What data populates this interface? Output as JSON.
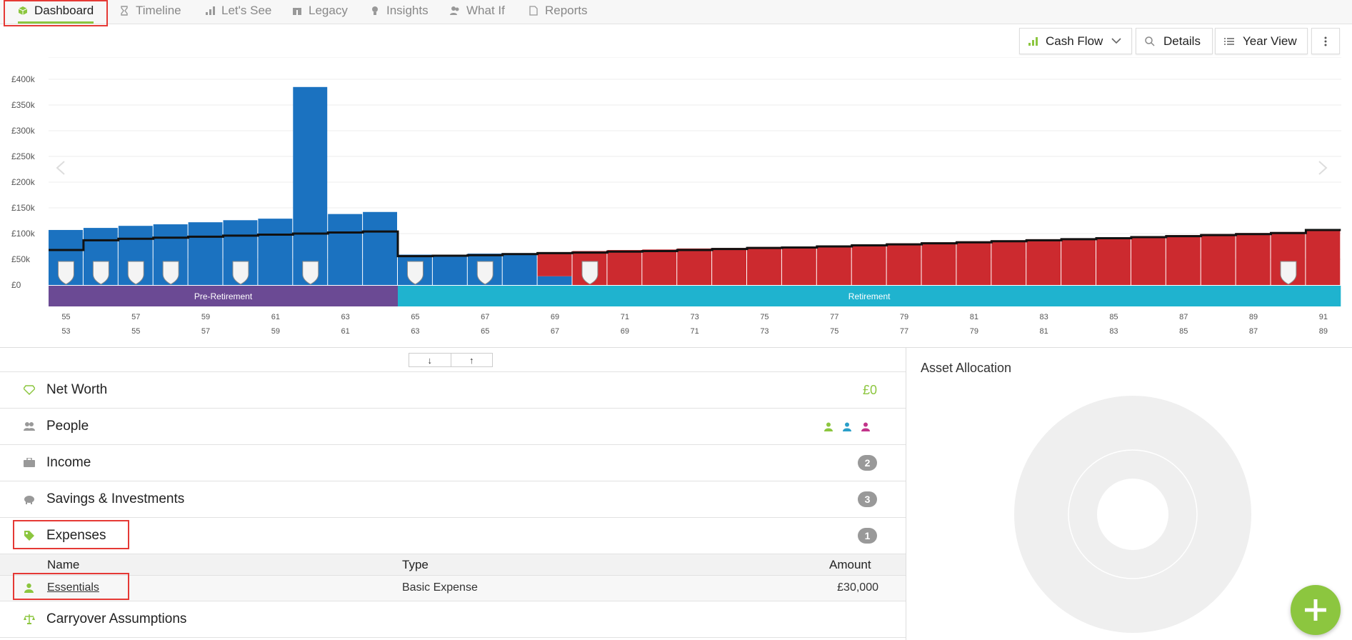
{
  "nav": {
    "tabs": [
      {
        "label": "Dashboard",
        "icon": "cube-icon",
        "active": true
      },
      {
        "label": "Timeline",
        "icon": "hourglass-icon",
        "active": false
      },
      {
        "label": "Let's See",
        "icon": "bar-chart-icon",
        "active": false
      },
      {
        "label": "Legacy",
        "icon": "gift-icon",
        "active": false
      },
      {
        "label": "Insights",
        "icon": "lightbulb-icon",
        "active": false
      },
      {
        "label": "What If",
        "icon": "people-icon",
        "active": false
      },
      {
        "label": "Reports",
        "icon": "pdf-file-icon",
        "active": false
      }
    ]
  },
  "toolbar": {
    "cashflow_label": "Cash Flow",
    "details_label": "Details",
    "yearview_label": "Year View"
  },
  "chart_data": {
    "type": "bar",
    "y_ticks": [
      "£0",
      "£50k",
      "£100k",
      "£150k",
      "£200k",
      "£250k",
      "£300k",
      "£350k",
      "£400k"
    ],
    "ylim": [
      0,
      400000
    ],
    "ages_primary": [
      55,
      56,
      57,
      58,
      59,
      60,
      61,
      62,
      63,
      64,
      65,
      66,
      67,
      68,
      69,
      70,
      71,
      72,
      73,
      74,
      75,
      76,
      77,
      78,
      79,
      80,
      81,
      82,
      83,
      84,
      85,
      86,
      87,
      88,
      89,
      90,
      91
    ],
    "x_labels_primary": [
      "55",
      "",
      "57",
      "",
      "59",
      "",
      "61",
      "",
      "63",
      "",
      "65",
      "",
      "67",
      "",
      "69",
      "",
      "71",
      "",
      "73",
      "",
      "75",
      "",
      "77",
      "",
      "79",
      "",
      "81",
      "",
      "83",
      "",
      "85",
      "",
      "87",
      "",
      "89",
      "",
      "91"
    ],
    "x_labels_secondary": [
      "53",
      "",
      "55",
      "",
      "57",
      "",
      "59",
      "",
      "61",
      "",
      "63",
      "",
      "65",
      "",
      "67",
      "",
      "69",
      "",
      "71",
      "",
      "73",
      "",
      "75",
      "",
      "77",
      "",
      "79",
      "",
      "81",
      "",
      "83",
      "",
      "85",
      "",
      "87",
      "",
      "89"
    ],
    "income_values": [
      107000,
      111000,
      115000,
      118000,
      122000,
      126000,
      129000,
      385000,
      138000,
      142000,
      59000,
      59000,
      61000,
      62000,
      17000,
      0,
      0,
      0,
      0,
      0,
      0,
      0,
      0,
      0,
      0,
      0,
      0,
      0,
      0,
      0,
      0,
      0,
      0,
      0,
      0,
      0,
      0
    ],
    "shortfall_values": [
      0,
      0,
      0,
      0,
      0,
      0,
      0,
      0,
      0,
      0,
      0,
      0,
      0,
      0,
      47000,
      66000,
      68000,
      69000,
      71000,
      72000,
      74000,
      75000,
      77000,
      79000,
      81000,
      83000,
      85000,
      87000,
      89000,
      91000,
      93000,
      95000,
      97000,
      99000,
      101000,
      103000,
      107000
    ],
    "expense_line": [
      68000,
      87000,
      90000,
      92000,
      94000,
      96000,
      98000,
      100000,
      102000,
      104000,
      56000,
      57000,
      58000,
      60000,
      62000,
      63000,
      65000,
      66000,
      68000,
      70000,
      72000,
      73000,
      75000,
      77000,
      79000,
      81000,
      83000,
      85000,
      87000,
      89000,
      91000,
      93000,
      95000,
      97000,
      99000,
      101000,
      107000
    ],
    "event_markers_at_ages": [
      55,
      56,
      57,
      58,
      60,
      62,
      65,
      67,
      70,
      90
    ],
    "phases": [
      {
        "label": "Pre-Retirement",
        "from_age": 55,
        "to_age": 65,
        "color": "#6b4a94"
      },
      {
        "label": "Retirement",
        "from_age": 65,
        "to_age": 92,
        "color": "#1fb3cf"
      }
    ],
    "colors": {
      "income": "#1b72c0",
      "shortfall": "#cc2a2f",
      "line": "#111111"
    }
  },
  "toggle": {
    "down": "↓",
    "up": "↑"
  },
  "sections": {
    "networth": {
      "label": "Net Worth",
      "value": "£0"
    },
    "people": {
      "label": "People"
    },
    "income": {
      "label": "Income",
      "count": "2"
    },
    "savings": {
      "label": "Savings & Investments",
      "count": "3"
    },
    "expenses": {
      "label": "Expenses",
      "count": "1"
    },
    "carryover": {
      "label": "Carryover Assumptions"
    }
  },
  "expenses_table": {
    "headers": {
      "name": "Name",
      "type": "Type",
      "amount": "Amount"
    },
    "rows": [
      {
        "name": "Essentials",
        "type": "Basic Expense",
        "amount": "£30,000"
      }
    ]
  },
  "asset_allocation": {
    "title": "Asset Allocation"
  },
  "colors": {
    "accent": "#8cc63f",
    "highlight": "#e53935"
  }
}
